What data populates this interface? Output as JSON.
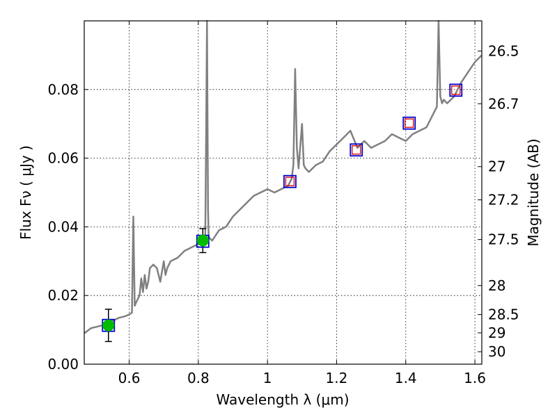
{
  "chart_data": {
    "type": "line",
    "title": "",
    "xlabel": "Wavelength  λ (μm)",
    "ylabel": "Flux  Fν  ( μJy )",
    "y2label": "Magnitude (AB)",
    "xlim": [
      0.47,
      1.62
    ],
    "ylim": [
      0.0,
      0.1
    ],
    "grid": true,
    "x_ticks": [
      0.6,
      0.8,
      1.0,
      1.2,
      1.4,
      1.6
    ],
    "x_tick_labels": [
      "0.6",
      "0.8",
      "1",
      "1.2",
      "1.4",
      "1.6"
    ],
    "y_ticks": [
      0.0,
      0.02,
      0.04,
      0.06,
      0.08
    ],
    "y_tick_labels": [
      "0.00",
      "0.02",
      "0.04",
      "0.06",
      "0.08"
    ],
    "mag_ticks": [
      26.5,
      26.7,
      27,
      27.2,
      27.5,
      28,
      28.5,
      29,
      30
    ],
    "mag_tick_labels": [
      "26.5",
      "26.7",
      "27",
      "27.2",
      "27.5",
      "28",
      "28.5",
      "29",
      "30"
    ],
    "series": [
      {
        "name": "model spectrum",
        "style": "line",
        "color": "#808080",
        "x": [
          0.47,
          0.49,
          0.51,
          0.53,
          0.55,
          0.57,
          0.59,
          0.6,
          0.608,
          0.612,
          0.616,
          0.62,
          0.63,
          0.635,
          0.64,
          0.645,
          0.65,
          0.655,
          0.66,
          0.67,
          0.68,
          0.69,
          0.7,
          0.705,
          0.71,
          0.72,
          0.74,
          0.76,
          0.78,
          0.8,
          0.81,
          0.82,
          0.822,
          0.825,
          0.828,
          0.83,
          0.84,
          0.86,
          0.88,
          0.9,
          0.92,
          0.94,
          0.96,
          0.98,
          1.0,
          1.02,
          1.04,
          1.06,
          1.07,
          1.075,
          1.08,
          1.085,
          1.09,
          1.1,
          1.105,
          1.11,
          1.12,
          1.14,
          1.16,
          1.18,
          1.2,
          1.22,
          1.24,
          1.26,
          1.28,
          1.3,
          1.32,
          1.34,
          1.36,
          1.38,
          1.4,
          1.41,
          1.42,
          1.44,
          1.46,
          1.48,
          1.49,
          1.495,
          1.5,
          1.505,
          1.51,
          1.52,
          1.54,
          1.56,
          1.58,
          1.6,
          1.62
        ],
        "y": [
          0.009,
          0.0105,
          0.011,
          0.0115,
          0.0125,
          0.0135,
          0.014,
          0.0145,
          0.015,
          0.043,
          0.017,
          0.018,
          0.02,
          0.025,
          0.021,
          0.026,
          0.022,
          0.024,
          0.028,
          0.029,
          0.028,
          0.024,
          0.03,
          0.026,
          0.028,
          0.03,
          0.031,
          0.033,
          0.034,
          0.035,
          0.036,
          0.037,
          0.06,
          0.1,
          0.045,
          0.037,
          0.036,
          0.039,
          0.04,
          0.043,
          0.045,
          0.047,
          0.049,
          0.05,
          0.051,
          0.05,
          0.051,
          0.052,
          0.054,
          0.058,
          0.086,
          0.063,
          0.057,
          0.07,
          0.058,
          0.057,
          0.056,
          0.058,
          0.059,
          0.062,
          0.064,
          0.066,
          0.068,
          0.063,
          0.065,
          0.063,
          0.064,
          0.065,
          0.067,
          0.066,
          0.065,
          0.066,
          0.067,
          0.068,
          0.069,
          0.073,
          0.075,
          0.1,
          0.078,
          0.076,
          0.077,
          0.076,
          0.078,
          0.082,
          0.085,
          0.088,
          0.09
        ]
      },
      {
        "name": "observed photometry",
        "style": "blue-square",
        "color": "#0000cc",
        "x": [
          0.54,
          0.813,
          1.065,
          1.257,
          1.41,
          1.545
        ],
        "y": [
          0.0113,
          0.0358,
          0.0532,
          0.0624,
          0.0702,
          0.0798
        ]
      },
      {
        "name": "model photometry",
        "style": "red-square",
        "color": "#dd0000",
        "x": [
          1.065,
          1.257,
          1.41,
          1.545
        ],
        "y": [
          0.0532,
          0.0624,
          0.0702,
          0.0798
        ]
      },
      {
        "name": "measured flux",
        "style": "green-circle-errorbar",
        "color": "#00bb00",
        "x": [
          0.54,
          0.813
        ],
        "y": [
          0.0113,
          0.036
        ],
        "yerr": [
          0.0047,
          0.0035
        ]
      }
    ]
  }
}
